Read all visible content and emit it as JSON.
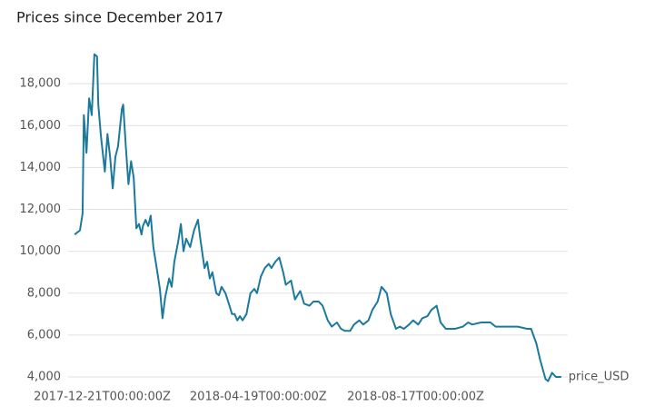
{
  "chart_data": {
    "type": "line",
    "title": "Prices since December 2017",
    "x": [
      "2017-11-30",
      "2017-12-04",
      "2017-12-06",
      "2017-12-07",
      "2017-12-09",
      "2017-12-11",
      "2017-12-13",
      "2017-12-15",
      "2017-12-17",
      "2017-12-18",
      "2017-12-20",
      "2017-12-23",
      "2017-12-25",
      "2017-12-27",
      "2017-12-29",
      "2017-12-31",
      "2018-01-02",
      "2018-01-05",
      "2018-01-06",
      "2018-01-08",
      "2018-01-10",
      "2018-01-12",
      "2018-01-14",
      "2018-01-16",
      "2018-01-18",
      "2018-01-20",
      "2018-01-21",
      "2018-01-23",
      "2018-01-25",
      "2018-01-27",
      "2018-01-29",
      "2018-02-01",
      "2018-02-03",
      "2018-02-05",
      "2018-02-07",
      "2018-02-10",
      "2018-02-12",
      "2018-02-14",
      "2018-02-17",
      "2018-02-19",
      "2018-02-21",
      "2018-02-23",
      "2018-02-26",
      "2018-03-01",
      "2018-03-04",
      "2018-03-06",
      "2018-03-09",
      "2018-03-11",
      "2018-03-13",
      "2018-03-15",
      "2018-03-18",
      "2018-03-20",
      "2018-03-22",
      "2018-03-25",
      "2018-03-28",
      "2018-03-30",
      "2018-04-01",
      "2018-04-03",
      "2018-04-05",
      "2018-04-07",
      "2018-04-10",
      "2018-04-13",
      "2018-04-16",
      "2018-04-18",
      "2018-04-21",
      "2018-04-24",
      "2018-04-27",
      "2018-04-29",
      "2018-05-02",
      "2018-05-05",
      "2018-05-08",
      "2018-05-10",
      "2018-05-14",
      "2018-05-17",
      "2018-05-21",
      "2018-05-24",
      "2018-05-28",
      "2018-05-31",
      "2018-06-04",
      "2018-06-07",
      "2018-06-11",
      "2018-06-14",
      "2018-06-18",
      "2018-06-21",
      "2018-06-24",
      "2018-06-28",
      "2018-07-01",
      "2018-07-05",
      "2018-07-08",
      "2018-07-12",
      "2018-07-15",
      "2018-07-19",
      "2018-07-22",
      "2018-07-26",
      "2018-07-29",
      "2018-08-02",
      "2018-08-05",
      "2018-08-08",
      "2018-08-12",
      "2018-08-15",
      "2018-08-19",
      "2018-08-22",
      "2018-08-26",
      "2018-08-29",
      "2018-09-02",
      "2018-09-05",
      "2018-09-09",
      "2018-09-16",
      "2018-09-22",
      "2018-09-26",
      "2018-09-29",
      "2018-10-06",
      "2018-10-13",
      "2018-10-17",
      "2018-10-20",
      "2018-10-27",
      "2018-11-03",
      "2018-11-10",
      "2018-11-13",
      "2018-11-17",
      "2018-11-20",
      "2018-11-24",
      "2018-11-26",
      "2018-11-29",
      "2018-12-02",
      "2018-12-06"
    ],
    "series": [
      {
        "name": "price_USD",
        "color": "#1b7a9c",
        "values": [
          10800,
          11000,
          11800,
          16500,
          14700,
          17300,
          16500,
          19400,
          19300,
          17000,
          15500,
          13800,
          15600,
          14500,
          13000,
          14500,
          15000,
          16800,
          17000,
          15000,
          13200,
          14300,
          13500,
          11100,
          11300,
          10800,
          11200,
          11500,
          11200,
          11700,
          10200,
          9000,
          8200,
          6800,
          7800,
          8700,
          8300,
          9500,
          10500,
          11300,
          10000,
          10600,
          10200,
          11000,
          11500,
          10500,
          9200,
          9500,
          8700,
          9000,
          8000,
          7900,
          8300,
          8000,
          7400,
          7000,
          7000,
          6700,
          6900,
          6700,
          7000,
          8000,
          8200,
          8000,
          8800,
          9200,
          9400,
          9200,
          9500,
          9700,
          9000,
          8400,
          8600,
          7700,
          8100,
          7500,
          7400,
          7600,
          7600,
          7400,
          6700,
          6400,
          6600,
          6300,
          6200,
          6200,
          6500,
          6700,
          6500,
          6700,
          7200,
          7600,
          8300,
          8000,
          7000,
          6300,
          6400,
          6300,
          6500,
          6700,
          6500,
          6800,
          6900,
          7200,
          7400,
          6600,
          6300,
          6300,
          6400,
          6600,
          6500,
          6600,
          6600,
          6400,
          6400,
          6400,
          6400,
          6300,
          6300,
          5600,
          4800,
          3900,
          3800,
          4200,
          4000,
          4000
        ]
      }
    ],
    "xlim": [
      "2017-11-25",
      "2018-12-11"
    ],
    "xticks": [
      "2017-12-21T00:00:00Z",
      "2018-04-19T00:00:00Z",
      "2018-08-17T00:00:00Z"
    ],
    "ylim": [
      4000,
      20000
    ],
    "yticks": [
      {
        "value": 4000,
        "label": "4,000"
      },
      {
        "value": 6000,
        "label": "6,000"
      },
      {
        "value": 8000,
        "label": "8,000"
      },
      {
        "value": 10000,
        "label": "10,000"
      },
      {
        "value": 12000,
        "label": "12,000"
      },
      {
        "value": 14000,
        "label": "14,000"
      },
      {
        "value": 16000,
        "label": "16,000"
      },
      {
        "value": 18000,
        "label": "18,000"
      }
    ],
    "grid": true
  }
}
